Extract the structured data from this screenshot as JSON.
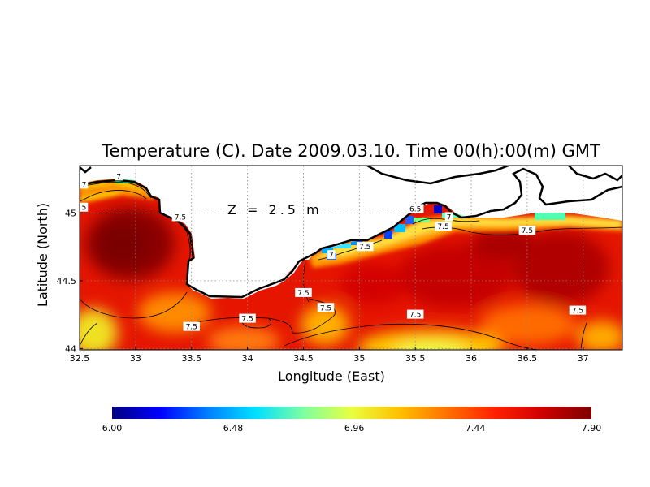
{
  "chart_data": {
    "type": "heatmap",
    "title": "Temperature (C). Date 2009.03.10. Time 00(h):00(m) GMT",
    "xlabel": "Longitude (East)",
    "ylabel": "Latitude (North)",
    "annotation": "Z = 2.5 m",
    "xlim": [
      32.5,
      37.35
    ],
    "ylim": [
      43.99,
      45.35
    ],
    "x_ticks": [
      "32.5",
      "33",
      "33.5",
      "34",
      "34.5",
      "35",
      "35.5",
      "36",
      "36.5",
      "37"
    ],
    "y_ticks": [
      "44",
      "44.5",
      "45"
    ],
    "grid": true,
    "colorbar": {
      "min": 6.0,
      "max": 7.9,
      "tick_labels": [
        "6.00",
        "6.48",
        "6.96",
        "7.44",
        "7.90"
      ],
      "colors": [
        "#00007f",
        "#0000ff",
        "#0080ff",
        "#00e0ff",
        "#7fffa0",
        "#e8ff3f",
        "#ffc000",
        "#ff7000",
        "#ff2000",
        "#cc0000",
        "#7f0000"
      ]
    },
    "contour_labels": [
      {
        "lon": 32.54,
        "lat": 45.21,
        "text": "7"
      },
      {
        "lon": 32.54,
        "lat": 45.04,
        "text": "5"
      },
      {
        "lon": 32.85,
        "lat": 45.27,
        "text": "7"
      },
      {
        "lon": 33.4,
        "lat": 44.97,
        "text": "7.5"
      },
      {
        "lon": 35.5,
        "lat": 45.03,
        "text": "6.5"
      },
      {
        "lon": 35.8,
        "lat": 44.97,
        "text": "7"
      },
      {
        "lon": 35.75,
        "lat": 44.9,
        "text": "7.5"
      },
      {
        "lon": 36.5,
        "lat": 44.87,
        "text": "7.5"
      },
      {
        "lon": 35.05,
        "lat": 44.75,
        "text": "7.5"
      },
      {
        "lon": 34.75,
        "lat": 44.69,
        "text": "7"
      },
      {
        "lon": 34.5,
        "lat": 44.41,
        "text": "7.5"
      },
      {
        "lon": 34.7,
        "lat": 44.3,
        "text": "7.5"
      },
      {
        "lon": 34.0,
        "lat": 44.22,
        "text": "7.5"
      },
      {
        "lon": 33.5,
        "lat": 44.16,
        "text": "7.5"
      },
      {
        "lon": 35.5,
        "lat": 44.25,
        "text": "7.5"
      },
      {
        "lon": 36.95,
        "lat": 44.28,
        "text": "7.5"
      }
    ],
    "field_samples": [
      {
        "lon": 32.8,
        "lat": 44.8,
        "value": 7.85
      },
      {
        "lon": 32.6,
        "lat": 44.1,
        "value": 7.2
      },
      {
        "lon": 33.3,
        "lat": 44.3,
        "value": 7.45
      },
      {
        "lon": 34.1,
        "lat": 44.1,
        "value": 7.45
      },
      {
        "lon": 35.6,
        "lat": 44.05,
        "value": 7.1
      },
      {
        "lon": 35.5,
        "lat": 44.5,
        "value": 7.7
      },
      {
        "lon": 36.7,
        "lat": 44.65,
        "value": 7.8
      },
      {
        "lon": 37.2,
        "lat": 44.2,
        "value": 7.65
      },
      {
        "lon": 32.75,
        "lat": 45.25,
        "value": 6.95
      },
      {
        "lon": 34.85,
        "lat": 44.77,
        "value": 6.3
      },
      {
        "lon": 35.55,
        "lat": 44.97,
        "value": 6.2
      },
      {
        "lon": 36.7,
        "lat": 45.04,
        "value": 6.85
      },
      {
        "lon": 34.7,
        "lat": 44.6,
        "value": 7.3
      },
      {
        "lon": 35.6,
        "lat": 44.85,
        "value": 7.15
      }
    ]
  }
}
